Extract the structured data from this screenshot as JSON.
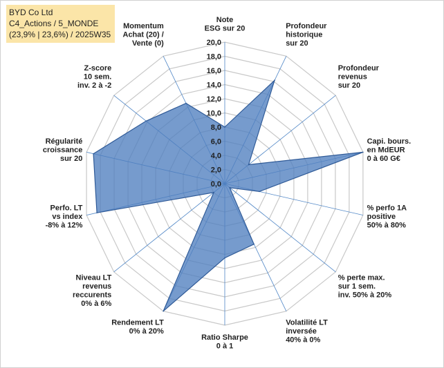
{
  "header": {
    "line1": "BYD Co Ltd",
    "line2": "C4_Actions / 5_MONDE",
    "line3": "(23,9% | 23,6%) / 2025W35"
  },
  "colors": {
    "fill": "#4f7fbf",
    "stroke": "#2f5a97",
    "grid": "#c8c8c8",
    "axis": "#4f86c6",
    "header_bg": "#fbe5a8"
  },
  "chart_data": {
    "type": "radar",
    "grid": true,
    "rmin": 0,
    "rmax": 20,
    "ticks": [
      "0,0",
      "2,0",
      "4,0",
      "6,0",
      "8,0",
      "10,0",
      "12,0",
      "14,0",
      "16,0",
      "18,0",
      "20,0"
    ],
    "categories": [
      [
        "Note",
        "ESG sur 20"
      ],
      [
        "Profondeur",
        "historique",
        "sur 20"
      ],
      [
        "Profondeur",
        "revenus",
        "sur 20"
      ],
      [
        "Capi. bours.",
        "en MdEUR",
        "0 à 60 G€"
      ],
      [
        "% perfo 1A",
        "positive",
        "50% à 80%"
      ],
      [
        "% perte max.",
        "sur 1 sem.",
        "inv. 50% à 20%"
      ],
      [
        "Volatilité LT",
        "inversée",
        "40% à 0%"
      ],
      [
        "Ratio Sharpe",
        "0 à 1"
      ],
      [
        "Rendement LT",
        "0% à 20%"
      ],
      [
        "Niveau LT",
        "revenus",
        "reccurents",
        "0% à 6%"
      ],
      [
        "Perfo. LT",
        "vs index",
        "-8% à 12%"
      ],
      [
        "Régularité",
        "croissance",
        "sur 20"
      ],
      [
        "Z-score",
        "10 sem.",
        "inv. 2 à -2"
      ],
      [
        "Momentum",
        "Achat (20) /",
        "Vente (0)"
      ]
    ],
    "values": [
      8.0,
      16.2,
      4.3,
      20.0,
      5.0,
      0.9,
      9.5,
      10.5,
      20.0,
      2.0,
      18.5,
      19.0,
      14.2,
      12.6
    ]
  }
}
